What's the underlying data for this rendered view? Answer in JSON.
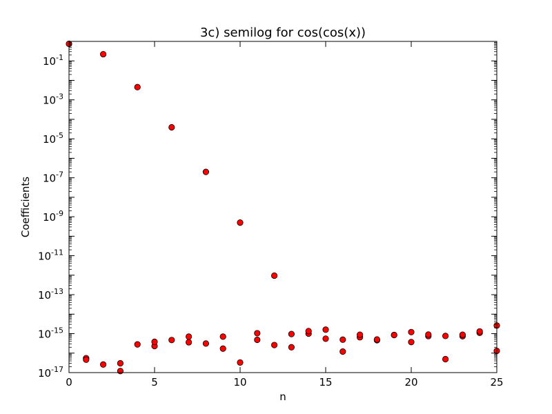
{
  "chart_data": {
    "type": "scatter",
    "title": "3c) semilog for cos(cos(x))",
    "xlabel": "n",
    "ylabel": "Coefficients",
    "xlim": [
      0,
      25
    ],
    "ylim": [
      1e-17,
      1
    ],
    "yscale": "log",
    "grid": false,
    "marker_color": "#ff0000",
    "marker_edge_color": "#000000",
    "x_ticks": [
      0,
      5,
      10,
      15,
      20,
      25
    ],
    "y_ticks": [
      {
        "value": 0.1,
        "base": "10",
        "exp": "-1"
      },
      {
        "value": 0.001,
        "base": "10",
        "exp": "-3"
      },
      {
        "value": 1e-05,
        "base": "10",
        "exp": "-5"
      },
      {
        "value": 1e-07,
        "base": "10",
        "exp": "-7"
      },
      {
        "value": 1e-09,
        "base": "10",
        "exp": "-9"
      },
      {
        "value": 1e-11,
        "base": "10",
        "exp": "-11"
      },
      {
        "value": 1e-13,
        "base": "10",
        "exp": "-13"
      },
      {
        "value": 1e-15,
        "base": "10",
        "exp": "-15"
      },
      {
        "value": 1e-17,
        "base": "10",
        "exp": "-17"
      }
    ],
    "series": [
      {
        "points": [
          [
            0,
            0.75
          ],
          [
            1,
            5.5e-17
          ],
          [
            2,
            0.22
          ],
          [
            3,
            1.2e-17
          ],
          [
            4,
            0.0045
          ],
          [
            5,
            2.3e-16
          ],
          [
            6,
            3.9e-05
          ],
          [
            7,
            3.6e-16
          ],
          [
            8,
            2e-07
          ],
          [
            9,
            1.7e-16
          ],
          [
            10,
            5e-10
          ],
          [
            11,
            4.8e-16
          ],
          [
            12,
            9.5e-13
          ],
          [
            13,
            2e-16
          ],
          [
            14,
            1e-15
          ],
          [
            15,
            5.5e-16
          ],
          [
            16,
            1.2e-16
          ],
          [
            17,
            6.5e-16
          ],
          [
            18,
            4.6e-16
          ],
          [
            19,
            8.5e-16
          ],
          [
            20,
            3.7e-16
          ],
          [
            21,
            7.5e-16
          ],
          [
            22,
            4.9e-17
          ],
          [
            23,
            7.4e-16
          ],
          [
            24,
            1.1e-15
          ],
          [
            25,
            1.3e-16
          ]
        ]
      },
      {
        "points": [
          [
            1,
            4.6e-17
          ],
          [
            2,
            2.6e-17
          ],
          [
            3,
            3e-17
          ],
          [
            4,
            2.8e-16
          ],
          [
            5,
            3.8e-16
          ],
          [
            6,
            4.7e-16
          ],
          [
            7,
            7e-16
          ],
          [
            8,
            3.1e-16
          ],
          [
            9,
            7e-16
          ],
          [
            10,
            3.3e-17
          ],
          [
            11,
            1.05e-15
          ],
          [
            12,
            2.6e-16
          ],
          [
            13,
            9.5e-16
          ],
          [
            14,
            1.35e-15
          ],
          [
            15,
            1.6e-15
          ],
          [
            16,
            4.9e-16
          ],
          [
            17,
            8.8e-16
          ],
          [
            18,
            5e-16
          ],
          [
            19,
            8.5e-16
          ],
          [
            20,
            1.2e-15
          ],
          [
            21,
            9e-16
          ],
          [
            22,
            7.6e-16
          ],
          [
            23,
            8.8e-16
          ],
          [
            24,
            1.3e-15
          ],
          [
            25,
            2.6e-15
          ]
        ]
      }
    ]
  }
}
